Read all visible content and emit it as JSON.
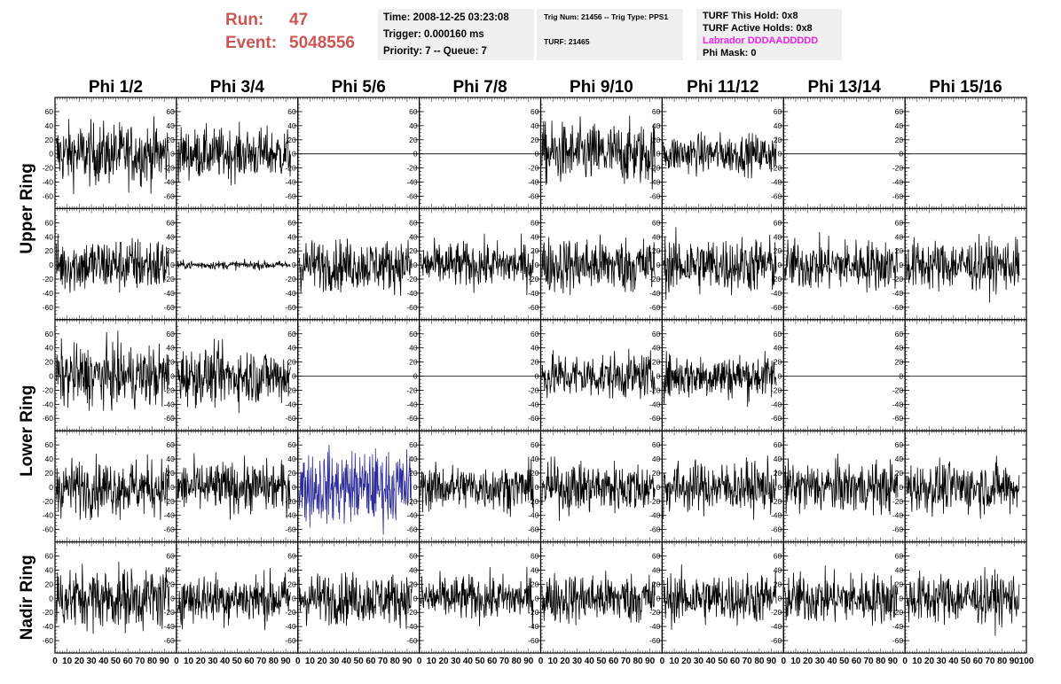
{
  "header": {
    "run_label": "Run:",
    "run_value": "47",
    "event_label": "Event:",
    "event_value": "5048556",
    "time": "Time: 2008-12-25 03:23:08",
    "trigger": "Trigger: 0.000160 ms",
    "priority": "Priority: 7 -- Queue: 7",
    "trig_num": "Trig Num: 21456 -- Trig Type: PPS1",
    "turf": "TURF: 21465",
    "turf_this_hold": "TURF This Hold: 0x8",
    "turf_active_holds": "TURF Active Holds: 0x8",
    "labrador": "Labrador DDDAADDDDD",
    "phi_mask": "Phi Mask: 0"
  },
  "colors": {
    "header_red": "#cc5555",
    "labrador_magenta": "#ee22ee",
    "trace": "#000000",
    "highlight_trace": "#2b2b99"
  },
  "chart_data": {
    "type": "line",
    "columns": [
      "Phi 1/2",
      "Phi 3/4",
      "Phi 5/6",
      "Phi 7/8",
      "Phi 9/10",
      "Phi 11/12",
      "Phi 13/14",
      "Phi 15/16"
    ],
    "ring_labels": [
      "Upper Ring",
      "Lower Ring",
      "Nadir Ring"
    ],
    "yticks": [
      -60,
      -40,
      -20,
      0,
      20,
      40,
      60
    ],
    "xticks": [
      0,
      10,
      20,
      30,
      40,
      50,
      60,
      70,
      80,
      90,
      100
    ],
    "ylim": [
      -70,
      70
    ],
    "xlim": [
      0,
      100
    ],
    "highlight": {
      "row": 3,
      "col": 2
    },
    "amplitude": [
      [
        22,
        18,
        0,
        0,
        22,
        14,
        0,
        0
      ],
      [
        20,
        3,
        18,
        16,
        20,
        20,
        18,
        18
      ],
      [
        22,
        20,
        0,
        0,
        16,
        16,
        0,
        0
      ],
      [
        20,
        18,
        26,
        16,
        18,
        18,
        18,
        18
      ],
      [
        22,
        18,
        18,
        16,
        18,
        18,
        18,
        18
      ]
    ]
  }
}
